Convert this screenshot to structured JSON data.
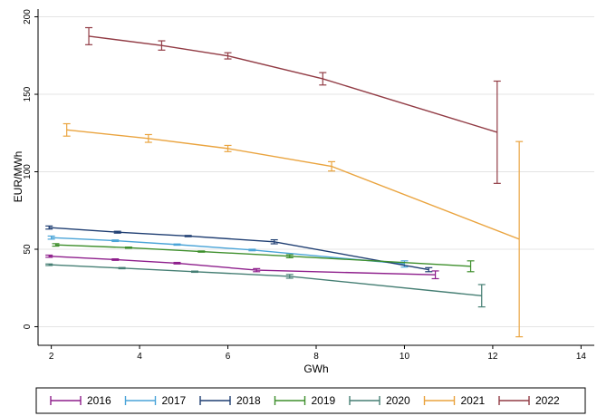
{
  "chart_data": {
    "type": "line",
    "title": "",
    "xlabel": "GWh",
    "ylabel": "EUR/MWh",
    "xlim": [
      1.7,
      14.3
    ],
    "ylim": [
      -12,
      205
    ],
    "xticks": [
      {
        "value": 2,
        "label": "2"
      },
      {
        "value": 4,
        "label": "4"
      },
      {
        "value": 6,
        "label": "6"
      },
      {
        "value": 8,
        "label": "8"
      },
      {
        "value": 10,
        "label": "10"
      },
      {
        "value": 12,
        "label": "12"
      },
      {
        "value": 14,
        "label": "14"
      }
    ],
    "yticks": [
      {
        "value": 0,
        "label": "0"
      },
      {
        "value": 50,
        "label": "50"
      },
      {
        "value": 100,
        "label": "100"
      },
      {
        "value": 150,
        "label": "150"
      },
      {
        "value": 200,
        "label": "200"
      }
    ],
    "grid": "horizontal",
    "legend_position": "bottom",
    "series": [
      {
        "name": "2016",
        "color": "#8e1f8c",
        "points": [
          {
            "x": 1.95,
            "y": 45.5,
            "lo": 44.8,
            "hi": 46.2
          },
          {
            "x": 3.45,
            "y": 43.3,
            "lo": 42.8,
            "hi": 43.8
          },
          {
            "x": 4.85,
            "y": 41.0,
            "lo": 40.5,
            "hi": 41.5
          },
          {
            "x": 6.65,
            "y": 36.5,
            "lo": 35.5,
            "hi": 37.5
          },
          {
            "x": 10.7,
            "y": 33.5,
            "lo": 31.0,
            "hi": 36.0
          }
        ]
      },
      {
        "name": "2017",
        "color": "#4aa4d8",
        "points": [
          {
            "x": 2.0,
            "y": 57.5,
            "lo": 56.5,
            "hi": 58.5
          },
          {
            "x": 3.45,
            "y": 55.5,
            "lo": 55.0,
            "hi": 56.0
          },
          {
            "x": 4.85,
            "y": 53.0,
            "lo": 52.6,
            "hi": 53.4
          },
          {
            "x": 6.55,
            "y": 49.5,
            "lo": 49.0,
            "hi": 50.0
          },
          {
            "x": 10.0,
            "y": 40.5,
            "lo": 38.5,
            "hi": 42.5
          }
        ]
      },
      {
        "name": "2018",
        "color": "#1f3e72",
        "points": [
          {
            "x": 1.95,
            "y": 64.0,
            "lo": 63.0,
            "hi": 65.0
          },
          {
            "x": 3.5,
            "y": 61.0,
            "lo": 60.4,
            "hi": 61.6
          },
          {
            "x": 5.1,
            "y": 58.5,
            "lo": 58.1,
            "hi": 58.9
          },
          {
            "x": 7.05,
            "y": 54.8,
            "lo": 53.5,
            "hi": 56.1
          },
          {
            "x": 10.55,
            "y": 36.8,
            "lo": 35.5,
            "hi": 38.1
          }
        ]
      },
      {
        "name": "2019",
        "color": "#3e8f2c",
        "points": [
          {
            "x": 2.1,
            "y": 52.8,
            "lo": 52.0,
            "hi": 53.6
          },
          {
            "x": 3.75,
            "y": 51.0,
            "lo": 50.6,
            "hi": 51.4
          },
          {
            "x": 5.4,
            "y": 48.5,
            "lo": 48.1,
            "hi": 48.9
          },
          {
            "x": 7.4,
            "y": 45.5,
            "lo": 44.5,
            "hi": 46.5
          },
          {
            "x": 11.5,
            "y": 39.0,
            "lo": 35.5,
            "hi": 42.5
          }
        ]
      },
      {
        "name": "2020",
        "color": "#467f74",
        "points": [
          {
            "x": 1.95,
            "y": 40.0,
            "lo": 39.5,
            "hi": 40.5
          },
          {
            "x": 3.6,
            "y": 37.8,
            "lo": 37.4,
            "hi": 38.2
          },
          {
            "x": 5.25,
            "y": 35.5,
            "lo": 35.1,
            "hi": 35.9
          },
          {
            "x": 7.4,
            "y": 32.5,
            "lo": 31.3,
            "hi": 33.7
          },
          {
            "x": 11.75,
            "y": 20.0,
            "lo": 12.8,
            "hi": 27.2
          }
        ]
      },
      {
        "name": "2021",
        "color": "#eaa43f",
        "points": [
          {
            "x": 2.35,
            "y": 127.0,
            "lo": 123.0,
            "hi": 131.0
          },
          {
            "x": 4.2,
            "y": 121.5,
            "lo": 119.0,
            "hi": 124.0
          },
          {
            "x": 6.0,
            "y": 115.0,
            "lo": 113.0,
            "hi": 117.0
          },
          {
            "x": 8.35,
            "y": 103.5,
            "lo": 100.5,
            "hi": 106.5
          },
          {
            "x": 12.6,
            "y": 56.5,
            "lo": -6.5,
            "hi": 119.5
          }
        ]
      },
      {
        "name": "2022",
        "color": "#923c45",
        "points": [
          {
            "x": 2.85,
            "y": 187.5,
            "lo": 182.0,
            "hi": 193.0
          },
          {
            "x": 4.5,
            "y": 181.5,
            "lo": 178.5,
            "hi": 184.5
          },
          {
            "x": 6.0,
            "y": 174.8,
            "lo": 172.8,
            "hi": 176.8
          },
          {
            "x": 8.15,
            "y": 160.0,
            "lo": 156.0,
            "hi": 164.0
          },
          {
            "x": 12.1,
            "y": 125.5,
            "lo": 92.5,
            "hi": 158.5
          }
        ]
      }
    ]
  }
}
